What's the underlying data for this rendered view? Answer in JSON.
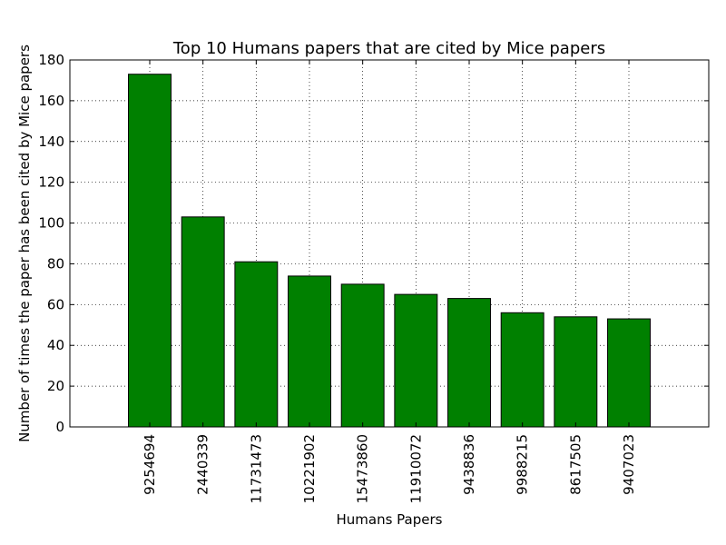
{
  "chart_data": {
    "type": "bar",
    "title": "Top 10 Humans papers that are cited by Mice papers",
    "xlabel": "Humans Papers",
    "ylabel": "Number of times the paper has been cited by Mice papers",
    "categories": [
      "9254694",
      "2440339",
      "11731473",
      "10221902",
      "15473860",
      "11910072",
      "9438836",
      "9988215",
      "8617505",
      "9407023"
    ],
    "values": [
      173,
      103,
      81,
      74,
      70,
      65,
      63,
      56,
      54,
      53
    ],
    "ylim": [
      0,
      180
    ],
    "yticks": [
      0,
      20,
      40,
      60,
      80,
      100,
      120,
      140,
      160,
      180
    ],
    "grid": true,
    "bar_color": "#008000",
    "edge_color": "#000000"
  }
}
